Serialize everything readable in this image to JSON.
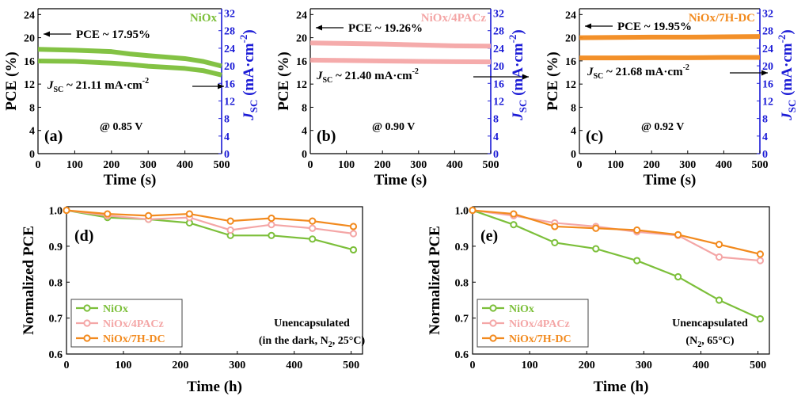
{
  "chart_data": [
    {
      "id": "a",
      "type": "line",
      "panel_label": "(a)",
      "material": "NiOx",
      "material_color": "#7cbf3a",
      "xlabel": "Time (s)",
      "ylabel": "PCE (%)",
      "y2label_main": "J",
      "y2label_sub": "SC",
      "y2label_unit": " (mA·cm",
      "y2label_sup": "-2",
      "y2label_close": ")",
      "xlim": [
        0,
        500
      ],
      "ylim": [
        0,
        25
      ],
      "y2lim": [
        0,
        33
      ],
      "xticks": [
        0,
        100,
        200,
        300,
        400,
        500
      ],
      "yticks": [
        0,
        4,
        8,
        12,
        16,
        20,
        24
      ],
      "y2ticks": [
        0,
        4,
        8,
        12,
        16,
        20,
        24,
        28,
        32
      ],
      "pce_annotation": "PCE ~ 17.95%",
      "jsc_annotation_main": "J",
      "jsc_annotation_sub": "SC",
      "jsc_annotation_rest": " ~ 21.11 mA·cm",
      "jsc_annotation_sup": "-2",
      "voltage_annotation": "@ 0.85 V",
      "series": [
        {
          "name": "PCE",
          "axis": "left",
          "color": "#7cbf3a",
          "x": [
            0,
            100,
            200,
            250,
            300,
            400,
            450,
            500
          ],
          "y": [
            18.0,
            17.85,
            17.6,
            17.2,
            16.9,
            16.4,
            15.9,
            15.1
          ]
        },
        {
          "name": "JSC",
          "axis": "right",
          "color": "#7cbf3a",
          "x": [
            0,
            100,
            200,
            250,
            300,
            400,
            450,
            500
          ],
          "y": [
            21.1,
            21.0,
            20.6,
            20.3,
            19.9,
            19.4,
            18.9,
            17.9
          ]
        }
      ]
    },
    {
      "id": "b",
      "type": "line",
      "panel_label": "(b)",
      "material": "NiOx/4PACz",
      "material_color": "#f4a6a6",
      "xlabel": "Time (s)",
      "ylabel": "PCE (%)",
      "y2label_main": "J",
      "y2label_sub": "SC",
      "y2label_unit": " (mA·cm",
      "y2label_sup": "-2",
      "y2label_close": ")",
      "xlim": [
        0,
        500
      ],
      "ylim": [
        0,
        25
      ],
      "y2lim": [
        0,
        33
      ],
      "xticks": [
        0,
        100,
        200,
        300,
        400,
        500
      ],
      "yticks": [
        0,
        4,
        8,
        12,
        16,
        20,
        24
      ],
      "y2ticks": [
        0,
        4,
        8,
        12,
        16,
        20,
        24,
        28,
        32
      ],
      "pce_annotation": "PCE ~ 19.26%",
      "jsc_annotation_main": "J",
      "jsc_annotation_sub": "SC",
      "jsc_annotation_rest": " ~ 21.40 mA·cm",
      "jsc_annotation_sup": "-2",
      "voltage_annotation": "@ 0.90 V",
      "series": [
        {
          "name": "PCE",
          "axis": "left",
          "color": "#f4a6a6",
          "x": [
            0,
            100,
            200,
            300,
            400,
            500
          ],
          "y": [
            19.1,
            19.0,
            18.9,
            18.75,
            18.6,
            18.55
          ]
        },
        {
          "name": "JSC",
          "axis": "right",
          "color": "#f4a6a6",
          "x": [
            0,
            100,
            200,
            300,
            400,
            500
          ],
          "y": [
            21.3,
            21.2,
            21.1,
            21.0,
            20.95,
            20.9
          ]
        }
      ]
    },
    {
      "id": "c",
      "type": "line",
      "panel_label": "(c)",
      "material": "NiOx/7H-DC",
      "material_color": "#f28a1e",
      "xlabel": "Time (s)",
      "ylabel": "PCE (%)",
      "y2label_main": "J",
      "y2label_sub": "SC",
      "y2label_unit": " (mA·cm",
      "y2label_sup": "-2",
      "y2label_close": ")",
      "xlim": [
        0,
        500
      ],
      "ylim": [
        0,
        25
      ],
      "y2lim": [
        0,
        33
      ],
      "xticks": [
        0,
        100,
        200,
        300,
        400,
        500
      ],
      "yticks": [
        0,
        4,
        8,
        12,
        16,
        20,
        24
      ],
      "y2ticks": [
        0,
        4,
        8,
        12,
        16,
        20,
        24,
        28,
        32
      ],
      "pce_annotation": "PCE ~ 19.95%",
      "jsc_annotation_main": "J",
      "jsc_annotation_sub": "SC",
      "jsc_annotation_rest": " ~ 21.68 mA·cm",
      "jsc_annotation_sup": "-2",
      "voltage_annotation": "@ 0.92 V",
      "series": [
        {
          "name": "PCE",
          "axis": "left",
          "color": "#f28a1e",
          "x": [
            0,
            100,
            200,
            300,
            400,
            500
          ],
          "y": [
            20.0,
            20.05,
            20.1,
            20.1,
            20.15,
            20.2
          ]
        },
        {
          "name": "JSC",
          "axis": "right",
          "color": "#f28a1e",
          "x": [
            0,
            100,
            200,
            300,
            400,
            500
          ],
          "y": [
            21.8,
            21.8,
            21.85,
            21.85,
            21.9,
            21.9
          ]
        }
      ]
    },
    {
      "id": "d",
      "type": "line",
      "panel_label": "(d)",
      "xlabel": "Time (h)",
      "ylabel": "Normalized PCE",
      "xlim": [
        0,
        520
      ],
      "ylim": [
        0.6,
        1.01
      ],
      "xticks": [
        0,
        100,
        200,
        300,
        400,
        500
      ],
      "yticks": [
        0.6,
        0.7,
        0.8,
        0.9,
        1.0
      ],
      "ytick_labels": [
        "0.6",
        "0.7",
        "0.8",
        "0.9",
        "1.0"
      ],
      "condition_line1": "Unencapsulated",
      "condition_line2_a": "(in the dark, N",
      "condition_line2_sub": "2",
      "condition_line2_b": ", 25°C)",
      "legend": [
        {
          "name": "NiOx",
          "color": "#7cbf3a"
        },
        {
          "name": "NiOx/4PACz",
          "color": "#f4a6a6"
        },
        {
          "name": "NiOx/7H-DC",
          "color": "#f28a1e"
        }
      ],
      "x": [
        0,
        72,
        144,
        216,
        288,
        360,
        432,
        504
      ],
      "series": [
        {
          "name": "NiOx",
          "color": "#7cbf3a",
          "values": [
            1.0,
            0.98,
            0.975,
            0.965,
            0.93,
            0.93,
            0.92,
            0.89
          ]
        },
        {
          "name": "NiOx/4PACz",
          "color": "#f4a6a6",
          "values": [
            1.0,
            0.985,
            0.975,
            0.98,
            0.945,
            0.96,
            0.95,
            0.935
          ]
        },
        {
          "name": "NiOx/7H-DC",
          "color": "#f28a1e",
          "values": [
            1.0,
            0.99,
            0.985,
            0.99,
            0.97,
            0.978,
            0.97,
            0.955
          ]
        }
      ]
    },
    {
      "id": "e",
      "type": "line",
      "panel_label": "(e)",
      "xlabel": "Time (h)",
      "ylabel": "Normalized PCE",
      "xlim": [
        0,
        520
      ],
      "ylim": [
        0.6,
        1.01
      ],
      "xticks": [
        0,
        100,
        200,
        300,
        400,
        500
      ],
      "yticks": [
        0.6,
        0.7,
        0.8,
        0.9,
        1.0
      ],
      "ytick_labels": [
        "0.6",
        "0.7",
        "0.8",
        "0.9",
        "1.0"
      ],
      "condition_line1": "Unencapsulated",
      "condition_line2_a": "(N",
      "condition_line2_sub": "2",
      "condition_line2_b": ", 65°C)",
      "legend": [
        {
          "name": "NiOx",
          "color": "#7cbf3a"
        },
        {
          "name": "NiOx/4PACz",
          "color": "#f4a6a6"
        },
        {
          "name": "NiOx/7H-DC",
          "color": "#f28a1e"
        }
      ],
      "x": [
        0,
        72,
        144,
        216,
        288,
        360,
        432,
        504
      ],
      "series": [
        {
          "name": "NiOx",
          "color": "#7cbf3a",
          "values": [
            1.0,
            0.96,
            0.91,
            0.893,
            0.86,
            0.815,
            0.75,
            0.698
          ]
        },
        {
          "name": "NiOx/4PACz",
          "color": "#f4a6a6",
          "values": [
            1.0,
            0.985,
            0.965,
            0.955,
            0.94,
            0.93,
            0.87,
            0.86
          ]
        },
        {
          "name": "NiOx/7H-DC",
          "color": "#f28a1e",
          "values": [
            1.0,
            0.99,
            0.955,
            0.95,
            0.945,
            0.932,
            0.905,
            0.878
          ]
        }
      ]
    }
  ],
  "colors": {
    "axis": "#000000",
    "right_axis": "#1b1bd6"
  }
}
